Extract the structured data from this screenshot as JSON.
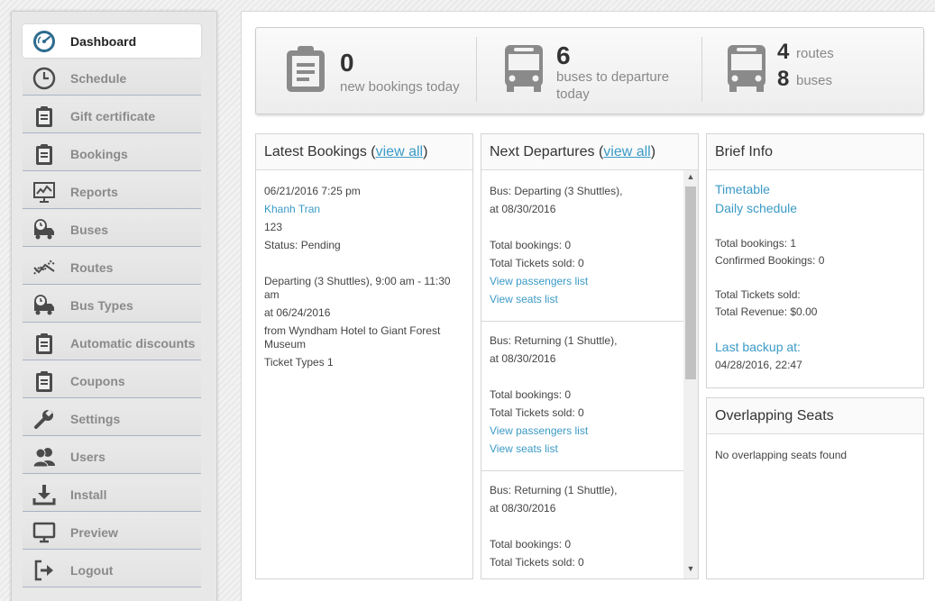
{
  "nav": {
    "items": [
      {
        "label": "Dashboard",
        "icon": "dashboard-gauge-icon"
      },
      {
        "label": "Schedule",
        "icon": "clock-icon"
      },
      {
        "label": "Gift certificate",
        "icon": "clipboard-icon"
      },
      {
        "label": "Bookings",
        "icon": "clipboard-icon"
      },
      {
        "label": "Reports",
        "icon": "chart-board-icon"
      },
      {
        "label": "Buses",
        "icon": "truck-clock-icon"
      },
      {
        "label": "Routes",
        "icon": "route-icon"
      },
      {
        "label": "Bus Types",
        "icon": "truck-clock-icon"
      },
      {
        "label": "Automatic discounts",
        "icon": "clipboard-icon"
      },
      {
        "label": "Coupons",
        "icon": "clipboard-icon"
      },
      {
        "label": "Settings",
        "icon": "wrench-icon"
      },
      {
        "label": "Users",
        "icon": "users-icon"
      },
      {
        "label": "Install",
        "icon": "download-icon"
      },
      {
        "label": "Preview",
        "icon": "monitor-icon"
      },
      {
        "label": "Logout",
        "icon": "logout-icon"
      }
    ]
  },
  "stats": {
    "bookings_num": "0",
    "bookings_label": "new bookings today",
    "buses_num": "6",
    "buses_label_1": "buses to departure",
    "buses_label_2": "today",
    "routes_num": "4",
    "routes_label": "routes",
    "total_buses_num": "8",
    "total_buses_label": "buses"
  },
  "latest_bookings": {
    "title": "Latest Bookings (",
    "view_all": "view all",
    "title_end": ")",
    "datetime": "06/21/2016 7:25 pm",
    "customer": "Khanh Tran",
    "code": "123",
    "status": "Status: Pending",
    "trip_1": "Departing (3 Shuttles), 9:00 am - 11:30",
    "trip_2": "am",
    "date": "at 06/24/2016",
    "from_1": "from Wyndham Hotel to Giant Forest",
    "from_2": "Museum",
    "ticket_types": "Ticket Types 1"
  },
  "next_departures": {
    "title": "Next Departures (",
    "view_all": "view all",
    "title_end": ")",
    "items": [
      {
        "bus": "Bus: Departing (3 Shuttles),",
        "date": "at 08/30/2016",
        "total_bookings": "Total bookings: 0",
        "tickets_sold": "Total Tickets sold: 0",
        "passengers_link": "View passengers list",
        "seats_link": "View seats list"
      },
      {
        "bus": "Bus: Returning (1 Shuttle),",
        "date": "at 08/30/2016",
        "total_bookings": "Total bookings: 0",
        "tickets_sold": "Total Tickets sold: 0",
        "passengers_link": "View passengers list",
        "seats_link": "View seats list"
      },
      {
        "bus": "Bus: Returning (1 Shuttle),",
        "date": "at 08/30/2016",
        "total_bookings": "Total bookings: 0",
        "tickets_sold": "Total Tickets sold: 0"
      }
    ]
  },
  "brief_info": {
    "title": "Brief Info",
    "timetable": "Timetable",
    "daily_schedule": "Daily schedule",
    "total_bookings": "Total bookings: 1",
    "confirmed": "Confirmed Bookings: 0",
    "tickets_sold": "Total Tickets sold:",
    "revenue": "Total Revenue: $0.00",
    "last_backup": "Last backup at:",
    "backup_time": "04/28/2016, 22:47"
  },
  "overlapping": {
    "title": "Overlapping Seats",
    "message": "No overlapping seats found"
  },
  "colors": {
    "link": "#3b9ac6",
    "nav_icon": "#4b4b4b",
    "dashboard_icon": "#2d6b8f"
  }
}
